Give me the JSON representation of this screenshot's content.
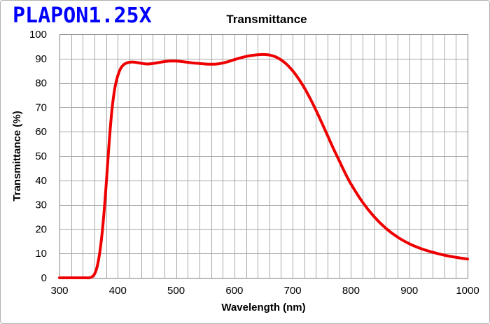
{
  "brand": {
    "text": "PLAPON1.25X",
    "color": "#0000ff"
  },
  "chart_data": {
    "type": "line",
    "title": "Transmittance",
    "xlabel": "Wavelength (nm)",
    "ylabel": "Transmittance (%)",
    "xlim": [
      300,
      1000
    ],
    "ylim": [
      0,
      100
    ],
    "xticks": [
      300,
      400,
      500,
      600,
      700,
      800,
      900,
      1000
    ],
    "yticks": [
      0,
      10,
      20,
      30,
      40,
      50,
      60,
      70,
      80,
      90,
      100
    ],
    "grid": true,
    "series": [
      {
        "color": "#ee0000",
        "x": [
          300,
          340,
          350,
          355,
          360,
          365,
          370,
          375,
          380,
          385,
          390,
          395,
          400,
          405,
          410,
          415,
          420,
          425,
          430,
          440,
          450,
          460,
          470,
          480,
          490,
          500,
          510,
          520,
          530,
          540,
          550,
          560,
          570,
          580,
          590,
          600,
          610,
          620,
          630,
          640,
          650,
          660,
          670,
          680,
          690,
          700,
          710,
          720,
          730,
          740,
          750,
          760,
          770,
          780,
          790,
          800,
          820,
          840,
          860,
          880,
          900,
          920,
          940,
          960,
          980,
          1000
        ],
        "y": [
          0,
          0,
          0,
          0.3,
          1.5,
          5,
          12,
          23,
          38,
          55,
          69,
          78,
          83,
          86,
          87.5,
          88.2,
          88.5,
          88.6,
          88.5,
          88.1,
          87.8,
          88,
          88.4,
          88.8,
          89,
          89,
          88.8,
          88.5,
          88.2,
          88,
          87.8,
          87.7,
          87.8,
          88.2,
          88.8,
          89.6,
          90.3,
          90.9,
          91.3,
          91.6,
          91.7,
          91.5,
          90.8,
          89.5,
          87.6,
          85,
          81.8,
          78,
          73.6,
          68.8,
          63.6,
          58.3,
          53,
          48,
          43,
          38.5,
          31,
          25,
          20.3,
          16.7,
          14,
          12,
          10.5,
          9.3,
          8.4,
          7.7
        ]
      }
    ]
  }
}
